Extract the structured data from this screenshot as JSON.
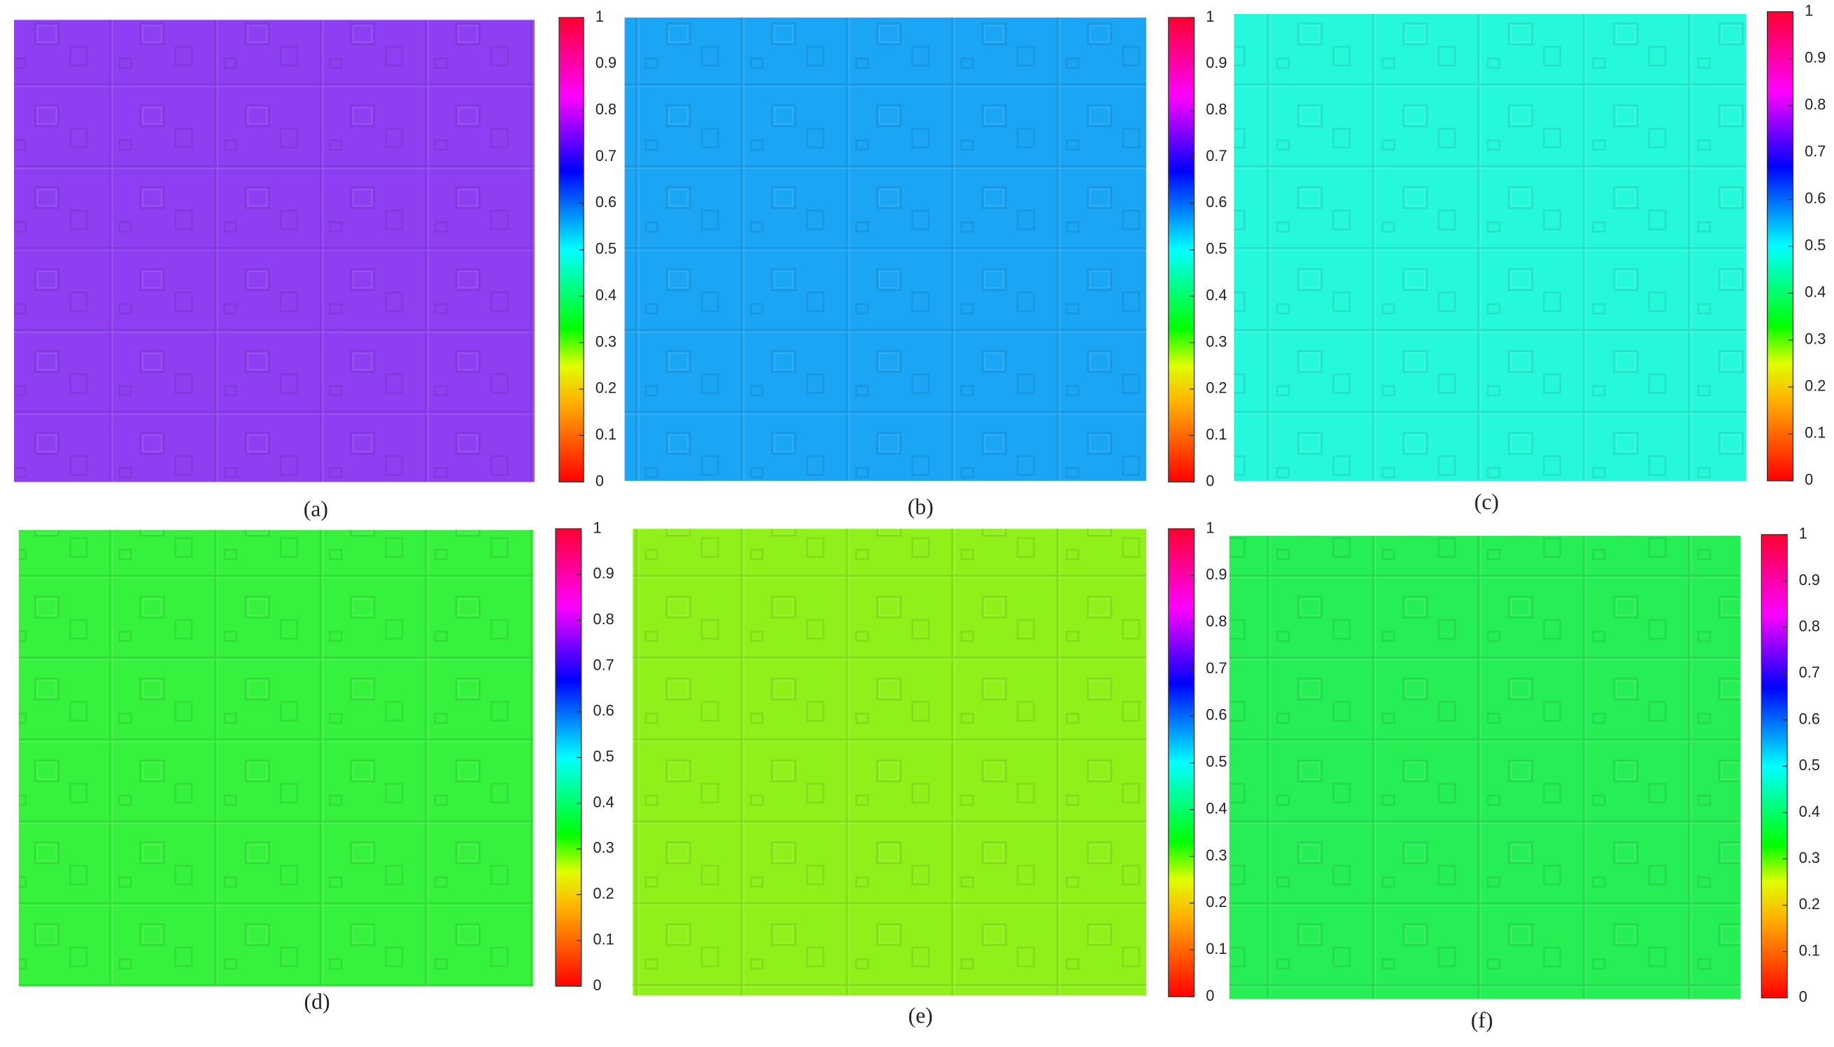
{
  "panels": [
    {
      "label": "(a)",
      "color": "#8e3ff2",
      "clim": [
        0,
        1
      ],
      "cticks": [
        0,
        0.1,
        0.2,
        0.3,
        0.4,
        0.5,
        0.6,
        0.7,
        0.8,
        0.9,
        1
      ]
    },
    {
      "label": "(b)",
      "color": "#1aa5f5",
      "clim": [
        0,
        1
      ],
      "cticks": [
        0,
        0.1,
        0.2,
        0.3,
        0.4,
        0.5,
        0.6,
        0.7,
        0.8,
        0.9,
        1
      ]
    },
    {
      "label": "(c)",
      "color": "#26f8dc",
      "clim": [
        0,
        1
      ],
      "cticks": [
        0,
        0.1,
        0.2,
        0.3,
        0.4,
        0.5,
        0.6,
        0.7,
        0.8,
        0.9,
        1
      ]
    },
    {
      "label": "(d)",
      "color": "#36f23c",
      "clim": [
        0,
        1
      ],
      "cticks": [
        0,
        0.1,
        0.2,
        0.3,
        0.4,
        0.5,
        0.6,
        0.7,
        0.8,
        0.9,
        1
      ]
    },
    {
      "label": "(e)",
      "color": "#90f01a",
      "clim": [
        0,
        1
      ],
      "cticks": [
        0,
        0.1,
        0.2,
        0.3,
        0.4,
        0.5,
        0.6,
        0.7,
        0.8,
        0.9,
        1
      ]
    },
    {
      "label": "(f)",
      "color": "#26ee55",
      "clim": [
        0,
        1
      ],
      "cticks": [
        0,
        0.1,
        0.2,
        0.3,
        0.4,
        0.5,
        0.6,
        0.7,
        0.8,
        0.9,
        1
      ]
    }
  ]
}
